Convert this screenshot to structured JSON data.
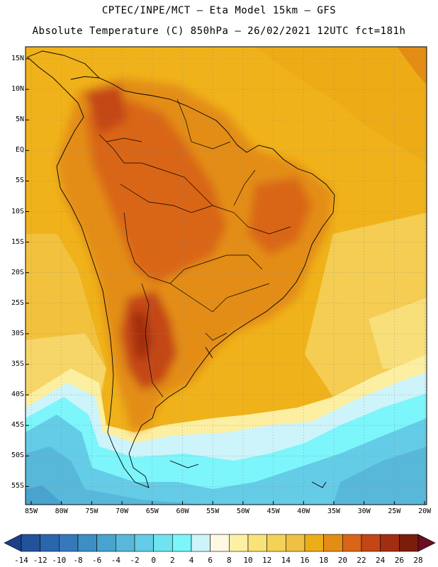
{
  "title_line1": "CPTEC/INPE/MCT –  Eta Model 15km – GFS",
  "title_line2": "Absolute Temperature (C) 850hPa – 26/02/2021 12UTC fct=181h",
  "lat_labels": [
    "15N",
    "10N",
    "5N",
    "EQ",
    "5S",
    "10S",
    "15S",
    "20S",
    "25S",
    "30S",
    "35S",
    "40S",
    "45S",
    "50S",
    "55S"
  ],
  "lon_labels": [
    "85W",
    "80W",
    "75W",
    "70W",
    "65W",
    "60W",
    "55W",
    "50W",
    "45W",
    "40W",
    "35W",
    "30W",
    "25W",
    "20W"
  ],
  "colorbar": {
    "labels": [
      "-14",
      "-12",
      "-10",
      "-8",
      "-6",
      "-4",
      "-2",
      "0",
      "2",
      "4",
      "6",
      "8",
      "10",
      "12",
      "14",
      "16",
      "18",
      "20",
      "22",
      "24",
      "26",
      "28"
    ],
    "colors": [
      "#1c3f8c",
      "#22529c",
      "#2a66ae",
      "#3479ba",
      "#3d8ec4",
      "#48a3cf",
      "#58b8da",
      "#64cce6",
      "#6fe3f0",
      "#7cf5fb",
      "#cdf4fa",
      "#fff8e2",
      "#fdf0a4",
      "#f9e278",
      "#f4d157",
      "#eec043",
      "#ecae18",
      "#e38d14",
      "#d96618",
      "#c44614",
      "#a32d10",
      "#7c1d0c",
      "#6a0e22"
    ]
  }
}
